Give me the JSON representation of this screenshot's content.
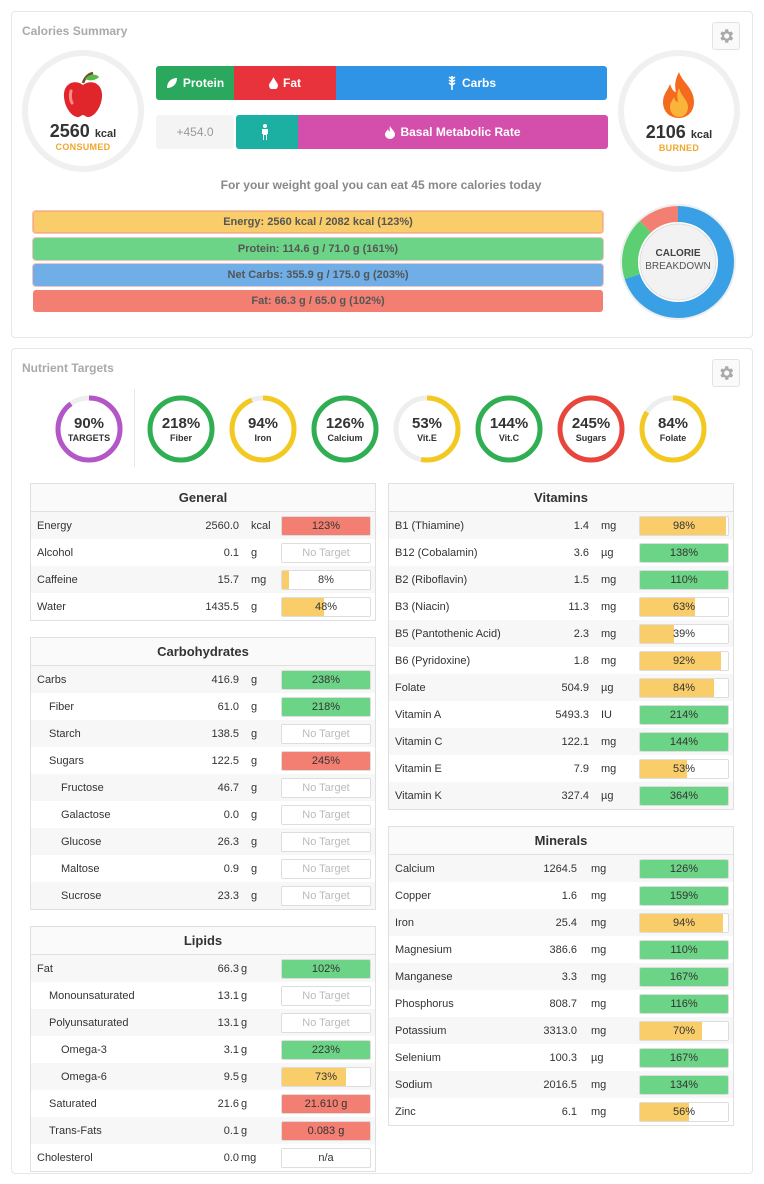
{
  "colors": {
    "green": "#6cd486",
    "yellow": "#f9cd6a",
    "red": "#f37f73",
    "blue": "#6faee6",
    "orange": "#f0a72c",
    "protein": "#29a85e",
    "fat": "#e8333c",
    "carbs": "#2f94e6",
    "bmr_teal": "#1cb0a3",
    "bmr_pink": "#d44fac"
  },
  "summary": {
    "title": "Calories Summary",
    "consumed": {
      "value": "2560",
      "unit": "kcal",
      "label": "CONSUMED",
      "icon": "apple-icon"
    },
    "burned": {
      "value": "2106",
      "unit": "kcal",
      "label": "BURNED",
      "icon": "flame-icon"
    },
    "segments": {
      "protein": "Protein",
      "fat": "Fat",
      "carbs": "Carbs",
      "bmr": "Basal Metabolic Rate"
    },
    "diff": "+454.0",
    "goal_text": "For your weight goal you can eat 45 more calories today",
    "bars": {
      "energy": "Energy: 2560 kcal / 2082 kcal (123%)",
      "protein": "Protein: 114.6 g / 71.0 g (161%)",
      "netcarbs": "Net Carbs: 355.9 g / 175.0 g (203%)",
      "fat": "Fat: 66.3 g / 65.0 g (102%)"
    },
    "breakdown": {
      "line1": "CALORIE",
      "line2": "BREAKDOWN"
    }
  },
  "targets": {
    "title": "Nutrient Targets",
    "items": [
      {
        "value": "90%",
        "label": "TARGETS",
        "pct": 90,
        "color": "#b256c8"
      },
      {
        "value": "218%",
        "label": "Fiber",
        "pct": 100,
        "color": "#2fae52"
      },
      {
        "value": "94%",
        "label": "Iron",
        "pct": 94,
        "color": "#f3c921"
      },
      {
        "value": "126%",
        "label": "Calcium",
        "pct": 100,
        "color": "#2fae52"
      },
      {
        "value": "53%",
        "label": "Vit.E",
        "pct": 53,
        "color": "#f3c921"
      },
      {
        "value": "144%",
        "label": "Vit.C",
        "pct": 100,
        "color": "#2fae52"
      },
      {
        "value": "245%",
        "label": "Sugars",
        "pct": 100,
        "color": "#e8453c"
      },
      {
        "value": "84%",
        "label": "Folate",
        "pct": 84,
        "color": "#f3c921"
      }
    ]
  },
  "tables": {
    "general": {
      "title": "General",
      "rows": [
        {
          "name": "Energy",
          "value": "2560.0",
          "unit": "kcal",
          "bar": "123%",
          "fill": 100,
          "color": "red",
          "indent": 0
        },
        {
          "name": "Alcohol",
          "value": "0.1",
          "unit": "g",
          "bar": "No Target",
          "fill": 0,
          "color": "none",
          "indent": 0
        },
        {
          "name": "Caffeine",
          "value": "15.7",
          "unit": "mg",
          "bar": "8%",
          "fill": 8,
          "color": "yellow",
          "indent": 0
        },
        {
          "name": "Water",
          "value": "1435.5",
          "unit": "g",
          "bar": "48%",
          "fill": 48,
          "color": "yellow",
          "indent": 0
        }
      ]
    },
    "carbs": {
      "title": "Carbohydrates",
      "rows": [
        {
          "name": "Carbs",
          "value": "416.9",
          "unit": "g",
          "bar": "238%",
          "fill": 100,
          "color": "green",
          "indent": 0
        },
        {
          "name": "Fiber",
          "value": "61.0",
          "unit": "g",
          "bar": "218%",
          "fill": 100,
          "color": "green",
          "indent": 1
        },
        {
          "name": "Starch",
          "value": "138.5",
          "unit": "g",
          "bar": "No Target",
          "fill": 0,
          "color": "none",
          "indent": 1
        },
        {
          "name": "Sugars",
          "value": "122.5",
          "unit": "g",
          "bar": "245%",
          "fill": 100,
          "color": "red",
          "indent": 1
        },
        {
          "name": "Fructose",
          "value": "46.7",
          "unit": "g",
          "bar": "No Target",
          "fill": 0,
          "color": "none",
          "indent": 2
        },
        {
          "name": "Galactose",
          "value": "0.0",
          "unit": "g",
          "bar": "No Target",
          "fill": 0,
          "color": "none",
          "indent": 2
        },
        {
          "name": "Glucose",
          "value": "26.3",
          "unit": "g",
          "bar": "No Target",
          "fill": 0,
          "color": "none",
          "indent": 2
        },
        {
          "name": "Maltose",
          "value": "0.9",
          "unit": "g",
          "bar": "No Target",
          "fill": 0,
          "color": "none",
          "indent": 2
        },
        {
          "name": "Sucrose",
          "value": "23.3",
          "unit": "g",
          "bar": "No Target",
          "fill": 0,
          "color": "none",
          "indent": 2
        }
      ]
    },
    "lipids": {
      "title": "Lipids",
      "rows": [
        {
          "name": "Fat",
          "value": "66.3",
          "unit": "g",
          "bar": "102%",
          "fill": 100,
          "color": "green",
          "indent": 0
        },
        {
          "name": "Monounsaturated",
          "value": "13.1",
          "unit": "g",
          "bar": "No Target",
          "fill": 0,
          "color": "none",
          "indent": 1
        },
        {
          "name": "Polyunsaturated",
          "value": "13.1",
          "unit": "g",
          "bar": "No Target",
          "fill": 0,
          "color": "none",
          "indent": 1
        },
        {
          "name": "Omega-3",
          "value": "3.1",
          "unit": "g",
          "bar": "223%",
          "fill": 100,
          "color": "green",
          "indent": 2
        },
        {
          "name": "Omega-6",
          "value": "9.5",
          "unit": "g",
          "bar": "73%",
          "fill": 73,
          "color": "yellow",
          "indent": 2
        },
        {
          "name": "Saturated",
          "value": "21.6",
          "unit": "g",
          "bar": "21.610 g",
          "fill": 100,
          "color": "red",
          "indent": 1
        },
        {
          "name": "Trans-Fats",
          "value": "0.1",
          "unit": "g",
          "bar": "0.083 g",
          "fill": 100,
          "color": "red",
          "indent": 1
        },
        {
          "name": "Cholesterol",
          "value": "0.0",
          "unit": "mg",
          "bar": "n/a",
          "fill": 0,
          "color": "none",
          "indent": 0
        }
      ]
    },
    "vitamins": {
      "title": "Vitamins",
      "rows": [
        {
          "name": "B1 (Thiamine)",
          "value": "1.4",
          "unit": "mg",
          "bar": "98%",
          "fill": 98,
          "color": "yellow",
          "indent": 0
        },
        {
          "name": "B12 (Cobalamin)",
          "value": "3.6",
          "unit": "µg",
          "bar": "138%",
          "fill": 100,
          "color": "green",
          "indent": 0
        },
        {
          "name": "B2 (Riboflavin)",
          "value": "1.5",
          "unit": "mg",
          "bar": "110%",
          "fill": 100,
          "color": "green",
          "indent": 0
        },
        {
          "name": "B3 (Niacin)",
          "value": "11.3",
          "unit": "mg",
          "bar": "63%",
          "fill": 63,
          "color": "yellow",
          "indent": 0
        },
        {
          "name": "B5 (Pantothenic Acid)",
          "value": "2.3",
          "unit": "mg",
          "bar": "39%",
          "fill": 39,
          "color": "yellow",
          "indent": 0
        },
        {
          "name": "B6 (Pyridoxine)",
          "value": "1.8",
          "unit": "mg",
          "bar": "92%",
          "fill": 92,
          "color": "yellow",
          "indent": 0
        },
        {
          "name": "Folate",
          "value": "504.9",
          "unit": "µg",
          "bar": "84%",
          "fill": 84,
          "color": "yellow",
          "indent": 0
        },
        {
          "name": "Vitamin A",
          "value": "5493.3",
          "unit": "IU",
          "bar": "214%",
          "fill": 100,
          "color": "green",
          "indent": 0
        },
        {
          "name": "Vitamin C",
          "value": "122.1",
          "unit": "mg",
          "bar": "144%",
          "fill": 100,
          "color": "green",
          "indent": 0
        },
        {
          "name": "Vitamin E",
          "value": "7.9",
          "unit": "mg",
          "bar": "53%",
          "fill": 53,
          "color": "yellow",
          "indent": 0
        },
        {
          "name": "Vitamin K",
          "value": "327.4",
          "unit": "µg",
          "bar": "364%",
          "fill": 100,
          "color": "green",
          "indent": 0
        }
      ]
    },
    "minerals": {
      "title": "Minerals",
      "rows": [
        {
          "name": "Calcium",
          "value": "1264.5",
          "unit": "mg",
          "bar": "126%",
          "fill": 100,
          "color": "green",
          "indent": 0
        },
        {
          "name": "Copper",
          "value": "1.6",
          "unit": "mg",
          "bar": "159%",
          "fill": 100,
          "color": "green",
          "indent": 0
        },
        {
          "name": "Iron",
          "value": "25.4",
          "unit": "mg",
          "bar": "94%",
          "fill": 94,
          "color": "yellow",
          "indent": 0
        },
        {
          "name": "Magnesium",
          "value": "386.6",
          "unit": "mg",
          "bar": "110%",
          "fill": 100,
          "color": "green",
          "indent": 0
        },
        {
          "name": "Manganese",
          "value": "3.3",
          "unit": "mg",
          "bar": "167%",
          "fill": 100,
          "color": "green",
          "indent": 0
        },
        {
          "name": "Phosphorus",
          "value": "808.7",
          "unit": "mg",
          "bar": "116%",
          "fill": 100,
          "color": "green",
          "indent": 0
        },
        {
          "name": "Potassium",
          "value": "3313.0",
          "unit": "mg",
          "bar": "70%",
          "fill": 70,
          "color": "yellow",
          "indent": 0
        },
        {
          "name": "Selenium",
          "value": "100.3",
          "unit": "µg",
          "bar": "167%",
          "fill": 100,
          "color": "green",
          "indent": 0
        },
        {
          "name": "Sodium",
          "value": "2016.5",
          "unit": "mg",
          "bar": "134%",
          "fill": 100,
          "color": "green",
          "indent": 0
        },
        {
          "name": "Zinc",
          "value": "6.1",
          "unit": "mg",
          "bar": "56%",
          "fill": 56,
          "color": "yellow",
          "indent": 0
        }
      ]
    }
  }
}
